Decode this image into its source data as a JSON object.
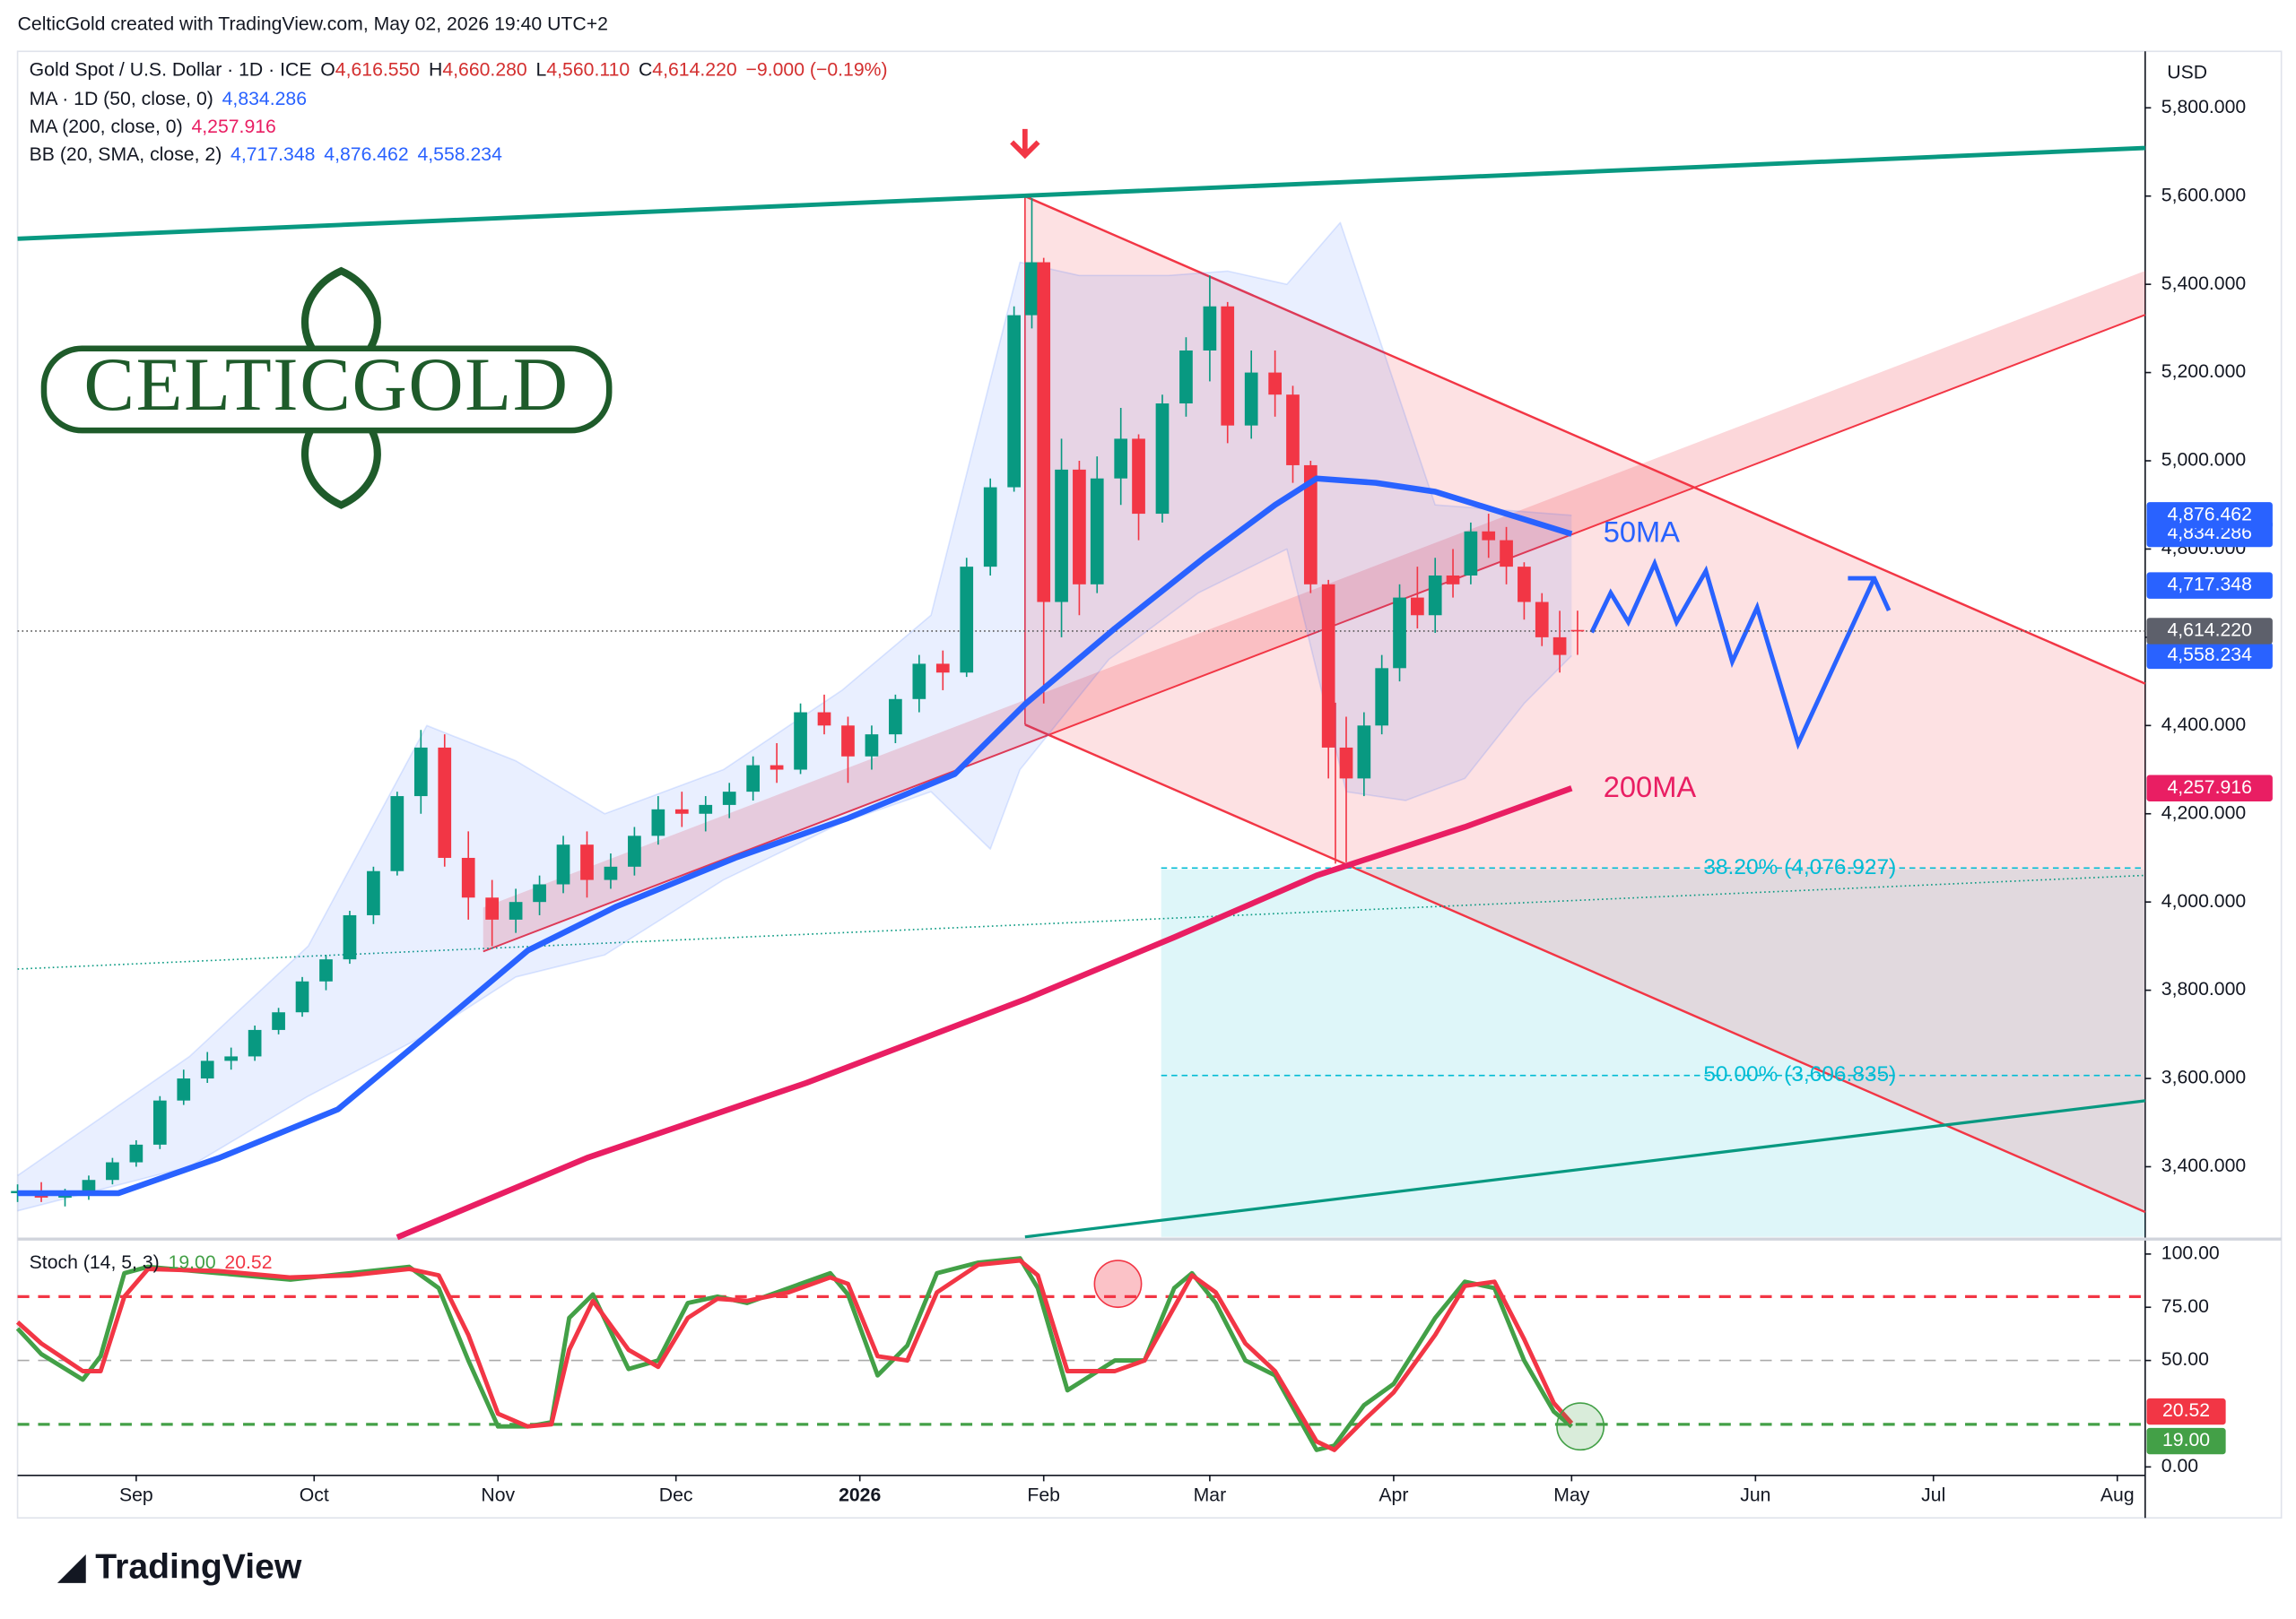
{
  "header": {
    "credit": "CelticGold created with TradingView.com, May 02, 2026 19:40 UTC+2"
  },
  "logo": "CELTICGOLD",
  "footer": {
    "brand": "TradingView"
  },
  "chart_data": {
    "type": "candlestick",
    "symbol": "Gold Spot / U.S. Dollar · 1D · ICE",
    "quote": [
      {
        "key": "O",
        "value": 4616.55,
        "label": "4,616.550"
      },
      {
        "key": "H",
        "value": 4660.28,
        "label": "4,660.280"
      },
      {
        "key": "L",
        "value": 4560.11,
        "label": "4,560.110"
      },
      {
        "key": "C",
        "value": 4614.22,
        "label": "4,614.220"
      }
    ],
    "change": "−9.000 (−0.19%)",
    "currency": "USD",
    "up_color": "#089981",
    "down_color": "#f23645",
    "x": [
      11,
      15,
      19,
      23,
      27,
      31,
      35,
      39,
      43,
      47,
      51,
      55,
      59,
      63,
      67,
      71,
      75,
      79,
      83,
      87,
      91,
      95,
      99,
      103,
      107,
      111,
      115,
      119,
      123,
      127,
      131,
      135,
      139,
      143,
      147,
      151,
      155,
      159,
      163,
      167,
      171,
      175,
      179,
      182,
      184,
      187,
      190,
      193,
      197,
      200,
      204,
      208,
      212,
      215,
      219,
      223,
      226,
      229,
      232,
      235,
      238,
      241,
      244,
      247,
      250,
      253,
      256,
      259,
      262,
      265,
      268,
      271,
      274
    ],
    "open": [
      3340,
      3345,
      3330,
      3335,
      3370,
      3410,
      3450,
      3550,
      3600,
      3640,
      3650,
      3710,
      3750,
      3820,
      3870,
      3970,
      4070,
      4240,
      4350,
      4100,
      4010,
      3960,
      4000,
      4040,
      4130,
      4050,
      4080,
      4150,
      4210,
      4200,
      4220,
      4250,
      4310,
      4300,
      4430,
      4400,
      4330,
      4380,
      4460,
      4540,
      4520,
      4760,
      4940,
      5330,
      5450,
      4680,
      4980,
      4720,
      4960,
      5050,
      4880,
      5130,
      5250,
      5350,
      5080,
      5200,
      5150,
      4990,
      4720,
      4350,
      4280,
      4400,
      4530,
      4690,
      4650,
      4740,
      4740,
      4840,
      4820,
      4760,
      4680,
      4600,
      4616.55
    ],
    "high": [
      3360,
      3365,
      3350,
      3380,
      3420,
      3460,
      3560,
      3620,
      3660,
      3670,
      3720,
      3760,
      3830,
      3880,
      3980,
      4080,
      4250,
      4390,
      4380,
      4160,
      4050,
      4030,
      4060,
      4150,
      4160,
      4110,
      4170,
      4240,
      4250,
      4240,
      4270,
      4330,
      4360,
      4450,
      4470,
      4420,
      4400,
      4470,
      4560,
      4570,
      4780,
      4960,
      5350,
      5595,
      5460,
      5050,
      5000,
      5010,
      5120,
      5060,
      5150,
      5280,
      5420,
      5360,
      5250,
      5250,
      5170,
      5000,
      4730,
      4420,
      4430,
      4560,
      4720,
      4760,
      4780,
      4800,
      4860,
      4880,
      4850,
      4770,
      4700,
      4660,
      4660.28
    ],
    "low": [
      3320,
      3320,
      3310,
      3325,
      3360,
      3400,
      3440,
      3540,
      3590,
      3620,
      3640,
      3700,
      3740,
      3800,
      3860,
      3950,
      4060,
      4200,
      4080,
      3960,
      3900,
      3930,
      3970,
      4020,
      4010,
      4030,
      4060,
      4130,
      4170,
      4160,
      4190,
      4230,
      4270,
      4290,
      4380,
      4270,
      4300,
      4360,
      4430,
      4480,
      4510,
      4740,
      4930,
      5300,
      4450,
      4600,
      4650,
      4700,
      4900,
      4820,
      4860,
      5100,
      5180,
      5040,
      5050,
      5100,
      4950,
      4700,
      4280,
      4090,
      4240,
      4380,
      4500,
      4620,
      4610,
      4690,
      4720,
      4780,
      4720,
      4640,
      4580,
      4520,
      4560.11
    ],
    "close": [
      3345,
      3330,
      3335,
      3370,
      3410,
      3450,
      3550,
      3600,
      3640,
      3650,
      3710,
      3750,
      3820,
      3870,
      3970,
      4070,
      4240,
      4350,
      4100,
      4010,
      3960,
      4000,
      4040,
      4130,
      4050,
      4080,
      4150,
      4210,
      4200,
      4220,
      4250,
      4310,
      4300,
      4430,
      4400,
      4330,
      4380,
      4460,
      4540,
      4520,
      4760,
      4940,
      5330,
      5450,
      4680,
      4980,
      4720,
      4960,
      5050,
      4880,
      5130,
      5250,
      5350,
      5080,
      5200,
      5150,
      4990,
      4720,
      4350,
      4280,
      4400,
      4530,
      4690,
      4650,
      4740,
      4720,
      4840,
      4820,
      4760,
      4680,
      4600,
      4560,
      4614.22
    ],
    "xlim": [
      11,
      369.7
    ],
    "xticks": [
      {
        "value": 31,
        "label": "Sep"
      },
      {
        "value": 61,
        "label": "Oct"
      },
      {
        "value": 92,
        "label": "Nov"
      },
      {
        "value": 122,
        "label": "Dec"
      },
      {
        "value": 153,
        "label": "2026"
      },
      {
        "value": 184,
        "label": "Feb"
      },
      {
        "value": 212,
        "label": "Mar"
      },
      {
        "value": 243,
        "label": "Apr"
      },
      {
        "value": 273,
        "label": "May"
      },
      {
        "value": 304,
        "label": "Jun"
      },
      {
        "value": 334,
        "label": "Jul"
      },
      {
        "value": 365,
        "label": "Aug"
      }
    ],
    "ylim": [
      3241,
      5928
    ],
    "yticks": [
      {
        "value": 3400,
        "label": "3,400.000"
      },
      {
        "value": 3600,
        "label": "3,600.000"
      },
      {
        "value": 3800,
        "label": "3,800.000"
      },
      {
        "value": 4000,
        "label": "4,000.000"
      },
      {
        "value": 4200,
        "label": "4,200.000"
      },
      {
        "value": 4400,
        "label": "4,400.000"
      },
      {
        "value": 4600,
        "label": "4,600.000"
      },
      {
        "value": 4800,
        "label": "4,800.000"
      },
      {
        "value": 5000,
        "label": "5,000.000"
      },
      {
        "value": 5200,
        "label": "5,200.000"
      },
      {
        "value": 5400,
        "label": "5,400.000"
      },
      {
        "value": 5600,
        "label": "5,600.000"
      },
      {
        "value": 5800,
        "label": "5,800.000"
      }
    ],
    "last_price": {
      "value": 4614.22,
      "label": "4,614.220"
    },
    "indicators": [
      {
        "name": "MA · 1D (50, close, 0)",
        "color": "#2962ff",
        "last": {
          "value": 4834.286,
          "label": "4,834.286"
        },
        "x": [
          11,
          28,
          45,
          65,
          82,
          97,
          112,
          132,
          151,
          169,
          181,
          196,
          211,
          223,
          230,
          240,
          250,
          262,
          273
        ],
        "values": [
          3340,
          3340,
          3420,
          3530,
          3720,
          3890,
          3990,
          4100,
          4190,
          4290,
          4450,
          4620,
          4780,
          4900,
          4960,
          4950,
          4930,
          4880,
          4834.286
        ]
      },
      {
        "name": "MA (200, close, 0)",
        "color": "#e91e63",
        "last": {
          "value": 4257.916,
          "label": "4,257.916"
        },
        "x": [
          75,
          107,
          144,
          181,
          206,
          230,
          255,
          273
        ],
        "values": [
          3240,
          3420,
          3590,
          3780,
          3920,
          4060,
          4170,
          4257.916
        ]
      }
    ],
    "bollinger": {
      "name": "BB (20, SMA, close, 2)",
      "color": "#2962ff",
      "basis": {
        "value": 4717.348,
        "label": "4,717.348"
      },
      "upper": {
        "value": 4876.462,
        "label": "4,876.462"
      },
      "lower": {
        "value": 4558.234,
        "label": "4,558.234"
      },
      "upper_x": [
        11,
        40,
        60,
        80,
        95,
        110,
        130,
        150,
        165,
        180,
        190,
        205,
        215,
        225,
        234,
        240,
        250,
        260,
        273
      ],
      "upper_values": [
        3380,
        3650,
        3900,
        4400,
        4320,
        4200,
        4300,
        4480,
        4650,
        5450,
        5420,
        5420,
        5430,
        5400,
        5540,
        5300,
        4900,
        4890,
        4876.462
      ],
      "lower_x": [
        11,
        40,
        60,
        80,
        95,
        110,
        130,
        150,
        165,
        175,
        180,
        195,
        210,
        225,
        235,
        245,
        255,
        265,
        273
      ],
      "lower_values": [
        3300,
        3400,
        3560,
        3700,
        3830,
        3880,
        4050,
        4180,
        4250,
        4120,
        4300,
        4550,
        4700,
        4800,
        4250,
        4230,
        4280,
        4450,
        4558.234
      ]
    },
    "fib_levels": [
      {
        "value": 4076.927,
        "label": "38.20% (4,076.927)"
      },
      {
        "value": 3606.835,
        "label": "50.00% (3,606.835)"
      }
    ],
    "annotations": [
      "50MA",
      "200MA"
    ],
    "stoch": {
      "name": "Stoch (14, 5, 3)",
      "ylim": [
        -4,
        106
      ],
      "yticks": [
        {
          "value": 100,
          "label": "100.00"
        },
        {
          "value": 75,
          "label": "75.00"
        },
        {
          "value": 50,
          "label": "50.00"
        },
        {
          "value": 0,
          "label": "0.00"
        }
      ],
      "bands": [
        80,
        50,
        20
      ],
      "x": [
        11,
        15,
        22,
        25,
        29,
        33,
        45,
        57,
        67,
        77,
        82,
        87,
        92,
        97,
        101,
        104,
        108,
        114,
        119,
        124,
        129,
        134,
        141,
        148,
        151,
        156,
        161,
        166,
        173,
        180,
        183,
        188,
        196,
        201,
        206,
        209,
        213,
        218,
        223,
        230,
        233,
        238,
        243,
        250,
        255,
        260,
        265,
        270,
        273
      ],
      "series": [
        {
          "color": "#43a047",
          "last": {
            "value": 19,
            "label": "19.00"
          },
          "values": [
            65,
            53,
            41,
            52,
            91,
            94,
            91,
            88,
            91,
            94,
            84,
            50,
            19,
            19,
            21,
            70,
            81,
            46,
            50,
            77,
            80,
            77,
            84,
            91,
            81,
            43,
            57,
            91,
            96,
            98,
            84,
            36,
            50,
            50,
            84,
            91,
            77,
            50,
            43,
            8,
            10,
            29,
            39,
            70,
            87,
            84,
            50,
            26,
            19
          ]
        },
        {
          "color": "#f23645",
          "last": {
            "value": 20.52,
            "label": "20.52"
          },
          "values": [
            68,
            58,
            45,
            45,
            80,
            93,
            92,
            89,
            90,
            93,
            90,
            62,
            25,
            19,
            20,
            55,
            78,
            55,
            47,
            70,
            79,
            78,
            82,
            89,
            86,
            52,
            50,
            82,
            95,
            97,
            90,
            45,
            45,
            50,
            75,
            90,
            82,
            58,
            45,
            12,
            8,
            22,
            35,
            62,
            85,
            87,
            60,
            30,
            20.52
          ]
        }
      ]
    }
  }
}
